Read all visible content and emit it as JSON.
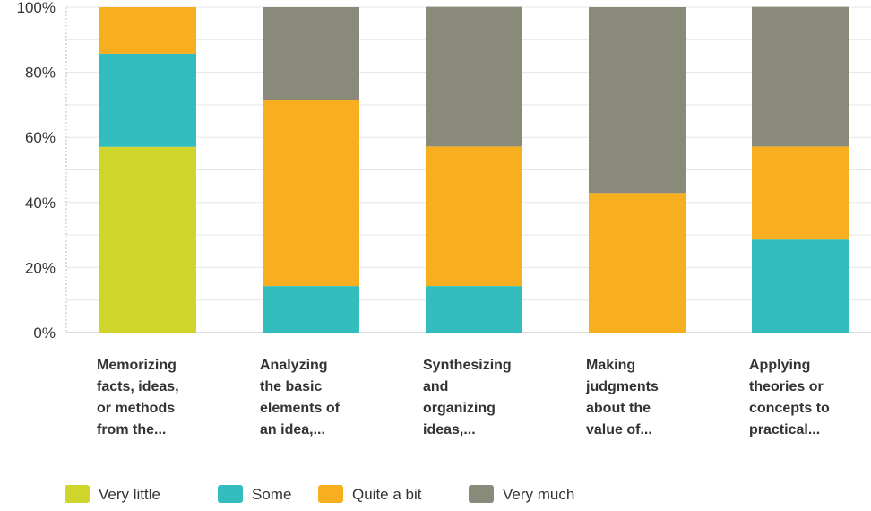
{
  "chart_data": {
    "type": "bar",
    "stacked": true,
    "percent": true,
    "categories": [
      [
        "Memorizing",
        "facts, ideas,",
        "or methods",
        "from the..."
      ],
      [
        "Analyzing",
        "the basic",
        "elements of",
        "an idea,..."
      ],
      [
        "Synthesizing",
        "and",
        "organizing",
        "ideas,..."
      ],
      [
        "Making",
        "judgments",
        "about the",
        "value of..."
      ],
      [
        "Applying",
        "theories or",
        "concepts to",
        "practical..."
      ]
    ],
    "series": [
      {
        "name": "Very little",
        "color": "#cfd52a",
        "values": [
          57.1,
          0,
          0,
          0,
          0
        ]
      },
      {
        "name": "Some",
        "color": "#33bdbf",
        "values": [
          28.6,
          14.3,
          14.3,
          0,
          28.6
        ]
      },
      {
        "name": "Quite a bit",
        "color": "#f7ae1f",
        "values": [
          14.3,
          57.1,
          42.9,
          42.9,
          28.6
        ]
      },
      {
        "name": "Very much",
        "color": "#8a8a7b",
        "values": [
          0,
          28.6,
          42.9,
          57.1,
          42.9
        ]
      }
    ],
    "yticks": [
      "0%",
      "20%",
      "40%",
      "60%",
      "80%",
      "100%"
    ],
    "ylim": [
      0,
      100
    ],
    "grid": true,
    "legend_position": "bottom-left"
  },
  "colors": {
    "grid": "#e6e6e6",
    "axis": "#bdbdbd",
    "text": "#333333"
  }
}
